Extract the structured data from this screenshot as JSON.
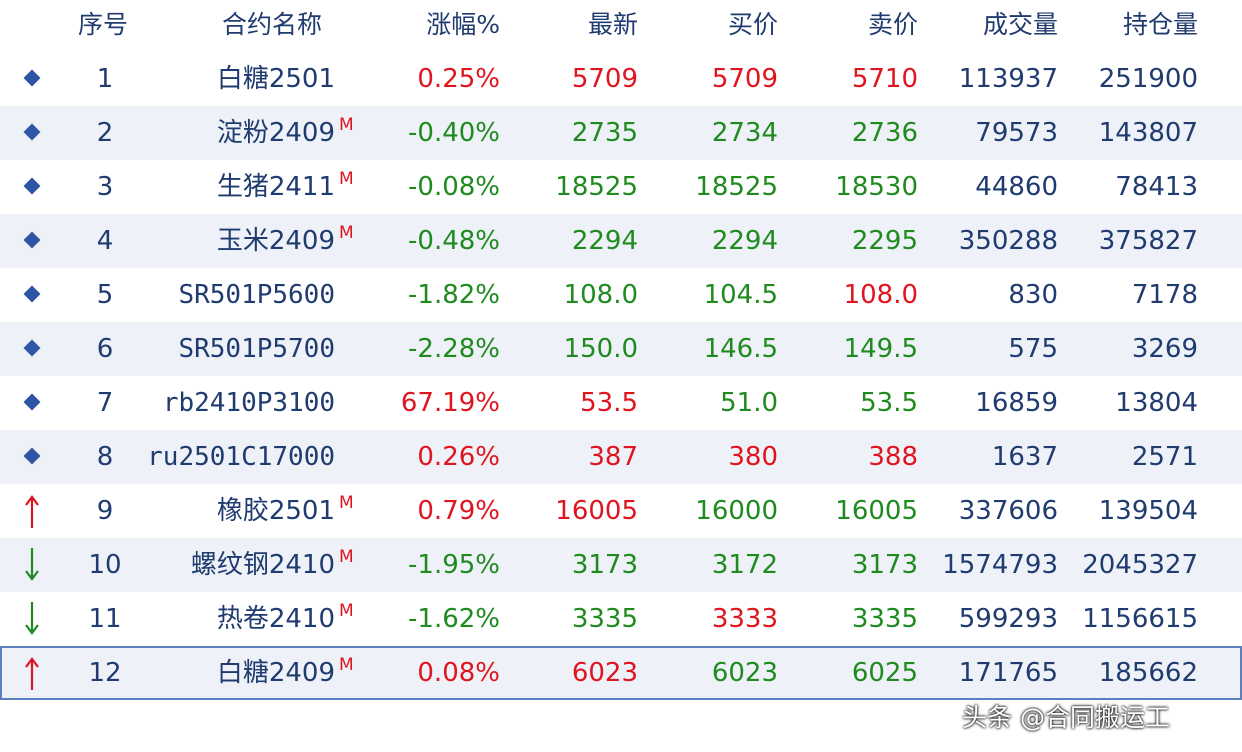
{
  "columns": {
    "index": "序号",
    "name": "合约名称",
    "change": "涨幅%",
    "last": "最新",
    "bid": "买价",
    "ask": "卖价",
    "volume": "成交量",
    "open_interest": "持仓量"
  },
  "colors": {
    "up": "#e0141e",
    "down": "#1f8b1f",
    "neutral": "#1f3b6f"
  },
  "rows": [
    {
      "marker": "diamond-icon",
      "index": "1",
      "name": "白糖2501",
      "m": "",
      "change": "0.25%",
      "change_dir": "up",
      "last": "5709",
      "last_dir": "up",
      "bid": "5709",
      "bid_dir": "up",
      "ask": "5710",
      "ask_dir": "up",
      "volume": "113937",
      "open_interest": "251900"
    },
    {
      "marker": "diamond-icon",
      "index": "2",
      "name": "淀粉2409",
      "m": "M",
      "change": "-0.40%",
      "change_dir": "down",
      "last": "2735",
      "last_dir": "down",
      "bid": "2734",
      "bid_dir": "down",
      "ask": "2736",
      "ask_dir": "down",
      "volume": "79573",
      "open_interest": "143807"
    },
    {
      "marker": "diamond-icon",
      "index": "3",
      "name": "生猪2411",
      "m": "M",
      "change": "-0.08%",
      "change_dir": "down",
      "last": "18525",
      "last_dir": "down",
      "bid": "18525",
      "bid_dir": "down",
      "ask": "18530",
      "ask_dir": "down",
      "volume": "44860",
      "open_interest": "78413"
    },
    {
      "marker": "diamond-icon",
      "index": "4",
      "name": "玉米2409",
      "m": "M",
      "change": "-0.48%",
      "change_dir": "down",
      "last": "2294",
      "last_dir": "down",
      "bid": "2294",
      "bid_dir": "down",
      "ask": "2295",
      "ask_dir": "down",
      "volume": "350288",
      "open_interest": "375827"
    },
    {
      "marker": "diamond-icon",
      "index": "5",
      "name": "SR501P5600",
      "m": "",
      "change": "-1.82%",
      "change_dir": "down",
      "last": "108.0",
      "last_dir": "down",
      "bid": "104.5",
      "bid_dir": "down",
      "ask": "108.0",
      "ask_dir": "up",
      "volume": "830",
      "open_interest": "7178"
    },
    {
      "marker": "diamond-icon",
      "index": "6",
      "name": "SR501P5700",
      "m": "",
      "change": "-2.28%",
      "change_dir": "down",
      "last": "150.0",
      "last_dir": "down",
      "bid": "146.5",
      "bid_dir": "down",
      "ask": "149.5",
      "ask_dir": "down",
      "volume": "575",
      "open_interest": "3269"
    },
    {
      "marker": "diamond-icon",
      "index": "7",
      "name": "rb2410P3100",
      "m": "",
      "change": "67.19%",
      "change_dir": "up",
      "last": "53.5",
      "last_dir": "up",
      "bid": "51.0",
      "bid_dir": "down",
      "ask": "53.5",
      "ask_dir": "down",
      "volume": "16859",
      "open_interest": "13804"
    },
    {
      "marker": "diamond-icon",
      "index": "8",
      "name": "ru2501C17000",
      "m": "",
      "change": "0.26%",
      "change_dir": "up",
      "last": "387",
      "last_dir": "up",
      "bid": "380",
      "bid_dir": "up",
      "ask": "388",
      "ask_dir": "up",
      "volume": "1637",
      "open_interest": "2571"
    },
    {
      "marker": "arrow-up-icon",
      "index": "9",
      "name": "橡胶2501",
      "m": "M",
      "change": "0.79%",
      "change_dir": "up",
      "last": "16005",
      "last_dir": "up",
      "bid": "16000",
      "bid_dir": "down",
      "ask": "16005",
      "ask_dir": "down",
      "volume": "337606",
      "open_interest": "139504"
    },
    {
      "marker": "arrow-down-icon",
      "index": "10",
      "name": "螺纹钢2410",
      "m": "M",
      "change": "-1.95%",
      "change_dir": "down",
      "last": "3173",
      "last_dir": "down",
      "bid": "3172",
      "bid_dir": "down",
      "ask": "3173",
      "ask_dir": "down",
      "volume": "1574793",
      "open_interest": "2045327"
    },
    {
      "marker": "arrow-down-icon",
      "index": "11",
      "name": "热卷2410",
      "m": "M",
      "change": "-1.62%",
      "change_dir": "down",
      "last": "3335",
      "last_dir": "down",
      "bid": "3333",
      "bid_dir": "up",
      "ask": "3335",
      "ask_dir": "down",
      "volume": "599293",
      "open_interest": "1156615"
    },
    {
      "marker": "arrow-up-icon",
      "index": "12",
      "name": "白糖2409",
      "m": "M",
      "change": "0.08%",
      "change_dir": "up",
      "last": "6023",
      "last_dir": "up",
      "bid": "6023",
      "bid_dir": "down",
      "ask": "6025",
      "ask_dir": "down",
      "volume": "171765",
      "open_interest": "185662",
      "selected": true
    }
  ],
  "watermark": "头条 @合同搬运工"
}
